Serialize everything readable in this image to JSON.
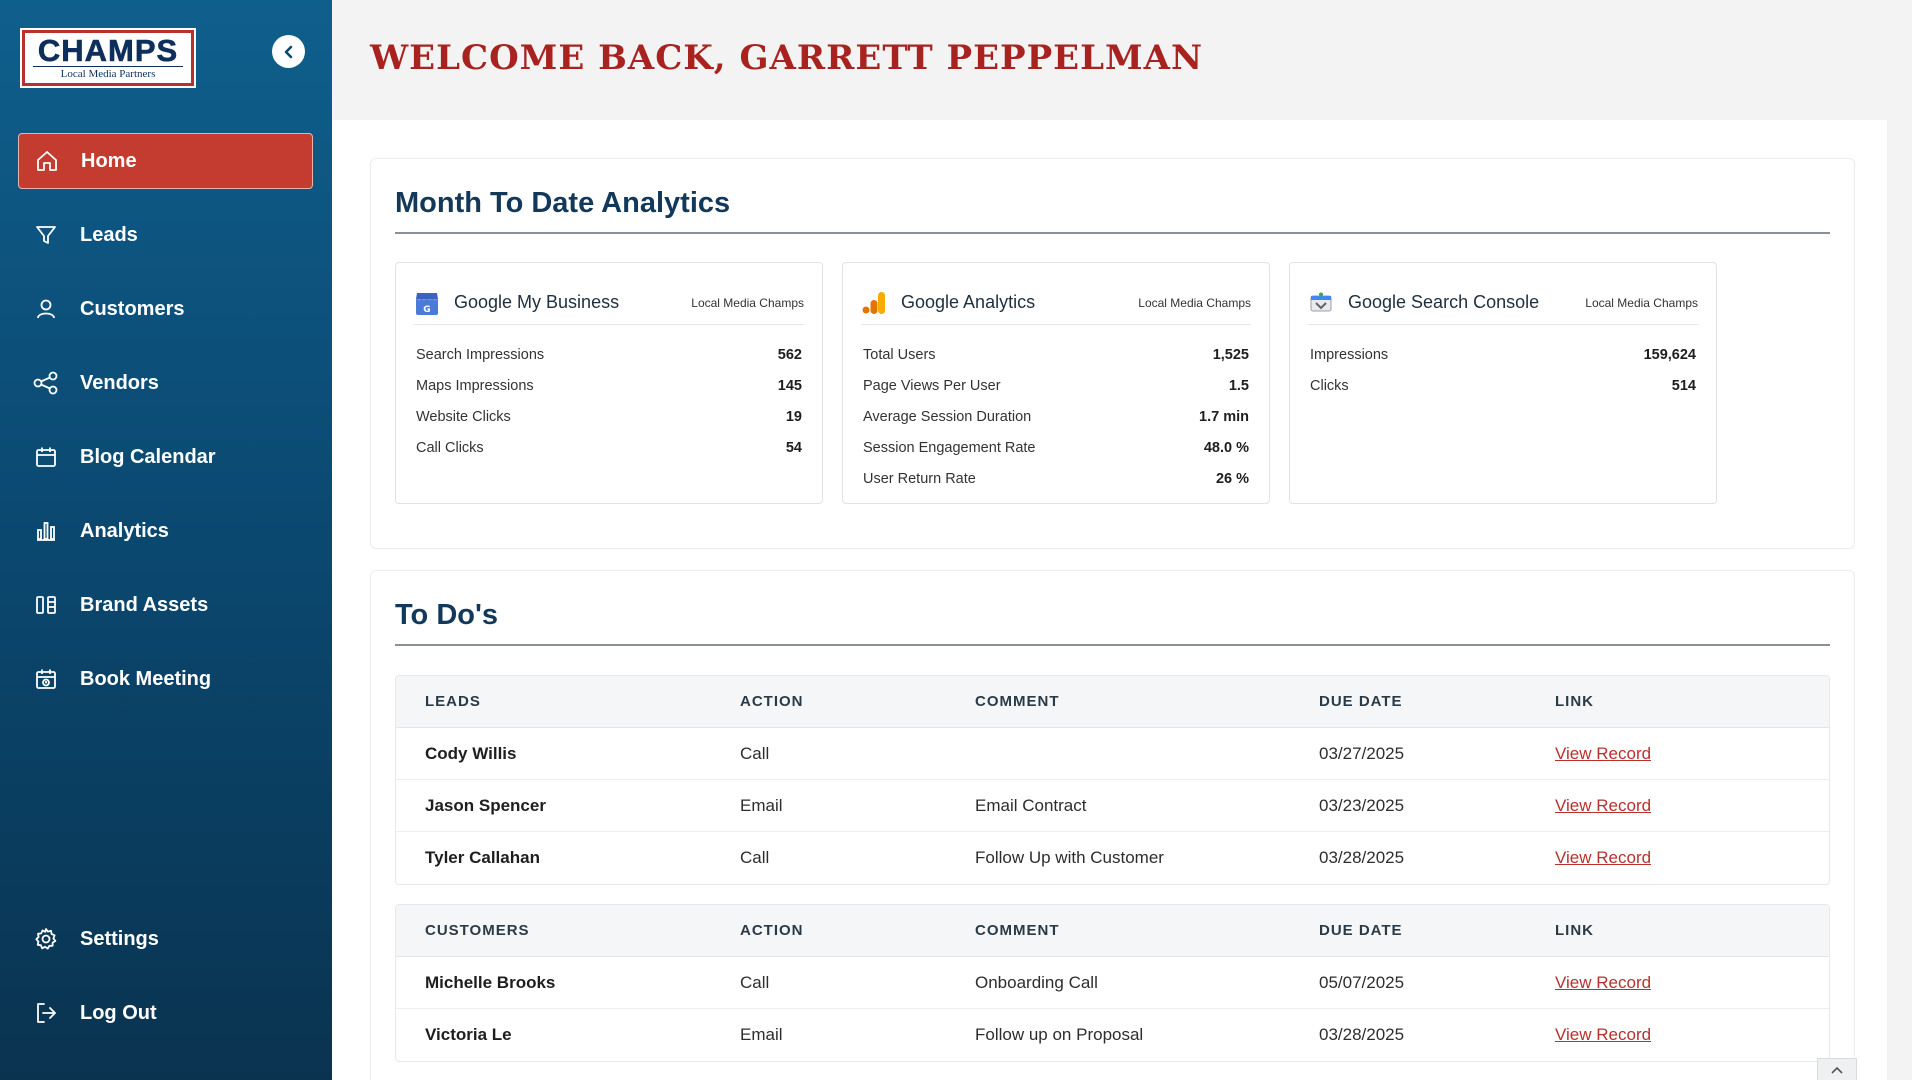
{
  "brand": {
    "name": "CHAMPS",
    "tagline": "Local Media Partners"
  },
  "sidebar": {
    "items": [
      {
        "label": "Home",
        "icon": "home-icon",
        "active": true
      },
      {
        "label": "Leads",
        "icon": "filter-icon"
      },
      {
        "label": "Customers",
        "icon": "user-icon"
      },
      {
        "label": "Vendors",
        "icon": "share-icon"
      },
      {
        "label": "Blog Calendar",
        "icon": "calendar-icon"
      },
      {
        "label": "Analytics",
        "icon": "bar-chart-icon"
      },
      {
        "label": "Brand Assets",
        "icon": "brand-assets-icon"
      },
      {
        "label": "Book Meeting",
        "icon": "calendar-clock-icon"
      }
    ],
    "bottom": [
      {
        "label": "Settings",
        "icon": "gear-icon"
      },
      {
        "label": "Log Out",
        "icon": "logout-icon"
      }
    ]
  },
  "header": {
    "welcome": "WELCOME BACK, GARRETT PEPPELMAN"
  },
  "analytics": {
    "title": "Month To Date Analytics",
    "cards": [
      {
        "name": "Google My Business",
        "owner": "Local Media Champs",
        "icon": "google-my-business-icon",
        "metrics": [
          {
            "label": "Search Impressions",
            "value": "562"
          },
          {
            "label": "Maps Impressions",
            "value": "145"
          },
          {
            "label": "Website Clicks",
            "value": "19"
          },
          {
            "label": "Call Clicks",
            "value": "54"
          }
        ]
      },
      {
        "name": "Google Analytics",
        "owner": "Local Media Champs",
        "icon": "google-analytics-icon",
        "metrics": [
          {
            "label": "Total Users",
            "value": "1,525"
          },
          {
            "label": "Page Views Per User",
            "value": "1.5"
          },
          {
            "label": "Average Session Duration",
            "value": "1.7 min"
          },
          {
            "label": "Session Engagement Rate",
            "value": "48.0 %"
          },
          {
            "label": "User Return Rate",
            "value": "26 %"
          }
        ]
      },
      {
        "name": "Google Search Console",
        "owner": "Local Media Champs",
        "icon": "google-search-console-icon",
        "metrics": [
          {
            "label": "Impressions",
            "value": "159,624"
          },
          {
            "label": "Clicks",
            "value": "514"
          }
        ]
      }
    ]
  },
  "todos": {
    "title": "To Do's",
    "leads": {
      "headers": [
        "LEADS",
        "ACTION",
        "COMMENT",
        "DUE DATE",
        "LINK"
      ],
      "rows": [
        {
          "name": "Cody Willis",
          "action": "Call",
          "comment": "",
          "due": "03/27/2025",
          "link": "View Record"
        },
        {
          "name": "Jason Spencer",
          "action": "Email",
          "comment": "Email Contract",
          "due": "03/23/2025",
          "link": "View Record"
        },
        {
          "name": "Tyler Callahan",
          "action": "Call",
          "comment": "Follow Up with Customer",
          "due": "03/28/2025",
          "link": "View Record"
        }
      ]
    },
    "customers": {
      "headers": [
        "CUSTOMERS",
        "ACTION",
        "COMMENT",
        "DUE DATE",
        "LINK"
      ],
      "rows": [
        {
          "name": "Michelle Brooks",
          "action": "Call",
          "comment": "Onboarding Call",
          "due": "05/07/2025",
          "link": "View Record"
        },
        {
          "name": "Victoria Le",
          "action": "Email",
          "comment": "Follow up on Proposal",
          "due": "03/28/2025",
          "link": "View Record"
        }
      ]
    }
  },
  "colors": {
    "accent": "#c43b2f",
    "sidebar": "#0b4a73",
    "title": "#12395a",
    "link": "#b8312f"
  }
}
